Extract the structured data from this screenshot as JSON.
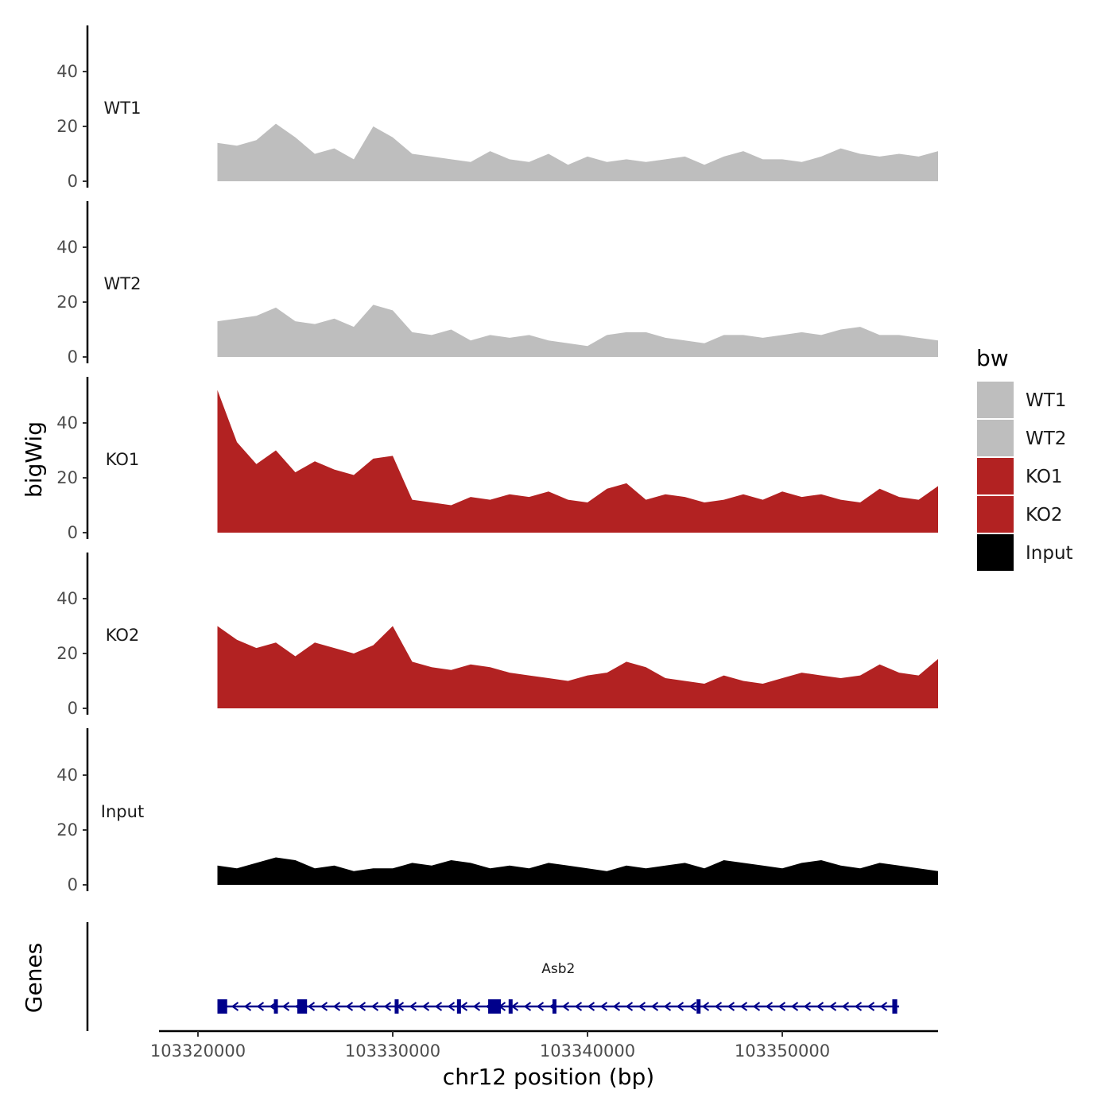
{
  "chart_data": {
    "type": "area",
    "title": "",
    "ylabel": "bigWig",
    "xlabel": "chr12 position (bp)",
    "gene_track_label": "Genes",
    "ylim": [
      0,
      55
    ],
    "yticks": [
      0,
      20,
      40
    ],
    "xlim": [
      103318000,
      103358000
    ],
    "xticks": [
      103320000,
      103330000,
      103340000,
      103350000
    ],
    "xtick_labels": [
      "103320000",
      "103330000",
      "103340000",
      "103350000"
    ],
    "legend": {
      "title": "bw",
      "position": "right",
      "entries": [
        {
          "label": "WT1",
          "color": "#bebebe"
        },
        {
          "label": "WT2",
          "color": "#bebebe"
        },
        {
          "label": "KO1",
          "color": "#b22222"
        },
        {
          "label": "KO2",
          "color": "#b22222"
        },
        {
          "label": "Input",
          "color": "#000000"
        }
      ]
    },
    "x_start": 103321000,
    "x_end": 103358000,
    "bin_bp": 1000,
    "series": [
      {
        "name": "WT1",
        "label": "WT1",
        "color": "#bebebe",
        "values": [
          14,
          13,
          15,
          21,
          16,
          10,
          12,
          8,
          20,
          16,
          10,
          9,
          8,
          7,
          11,
          8,
          7,
          10,
          6,
          9,
          7,
          8,
          7,
          8,
          9,
          6,
          9,
          11,
          8,
          8,
          7,
          9,
          12,
          10,
          9,
          10,
          9,
          11
        ]
      },
      {
        "name": "WT2",
        "label": "WT2",
        "color": "#bebebe",
        "values": [
          13,
          14,
          15,
          18,
          13,
          12,
          14,
          11,
          19,
          17,
          9,
          8,
          10,
          6,
          8,
          7,
          8,
          6,
          5,
          4,
          8,
          9,
          9,
          7,
          6,
          5,
          8,
          8,
          7,
          8,
          9,
          8,
          10,
          11,
          8,
          8,
          7,
          6
        ]
      },
      {
        "name": "KO1",
        "label": "KO1",
        "color": "#b22222",
        "values": [
          52,
          33,
          25,
          30,
          22,
          26,
          23,
          21,
          27,
          28,
          12,
          11,
          10,
          13,
          12,
          14,
          13,
          15,
          12,
          11,
          16,
          18,
          12,
          14,
          13,
          11,
          12,
          14,
          12,
          15,
          13,
          14,
          12,
          11,
          16,
          13,
          12,
          17
        ]
      },
      {
        "name": "KO2",
        "label": "KO2",
        "color": "#b22222",
        "values": [
          30,
          25,
          22,
          24,
          19,
          24,
          22,
          20,
          23,
          30,
          17,
          15,
          14,
          16,
          15,
          13,
          12,
          11,
          10,
          12,
          13,
          17,
          15,
          11,
          10,
          9,
          12,
          10,
          9,
          11,
          13,
          12,
          11,
          12,
          16,
          13,
          12,
          18
        ]
      },
      {
        "name": "Input",
        "label": "Input",
        "color": "#000000",
        "values": [
          7,
          6,
          8,
          10,
          9,
          6,
          7,
          5,
          6,
          6,
          8,
          7,
          9,
          8,
          6,
          7,
          6,
          8,
          7,
          6,
          5,
          7,
          6,
          7,
          8,
          6,
          9,
          8,
          7,
          6,
          8,
          9,
          7,
          6,
          8,
          7,
          6,
          5
        ]
      }
    ],
    "gene": {
      "name": "Asb2",
      "strand": "-",
      "start": 103321000,
      "end": 103356000,
      "color": "#00008b",
      "exons": [
        {
          "start": 103321000,
          "end": 103321500
        },
        {
          "start": 103323900,
          "end": 103324050
        },
        {
          "start": 103325100,
          "end": 103325600
        },
        {
          "start": 103330100,
          "end": 103330250
        },
        {
          "start": 103333300,
          "end": 103333450
        },
        {
          "start": 103334900,
          "end": 103335550
        },
        {
          "start": 103335950,
          "end": 103336100
        },
        {
          "start": 103338200,
          "end": 103338400
        },
        {
          "start": 103345600,
          "end": 103345800
        },
        {
          "start": 103355650,
          "end": 103355900
        }
      ]
    }
  }
}
